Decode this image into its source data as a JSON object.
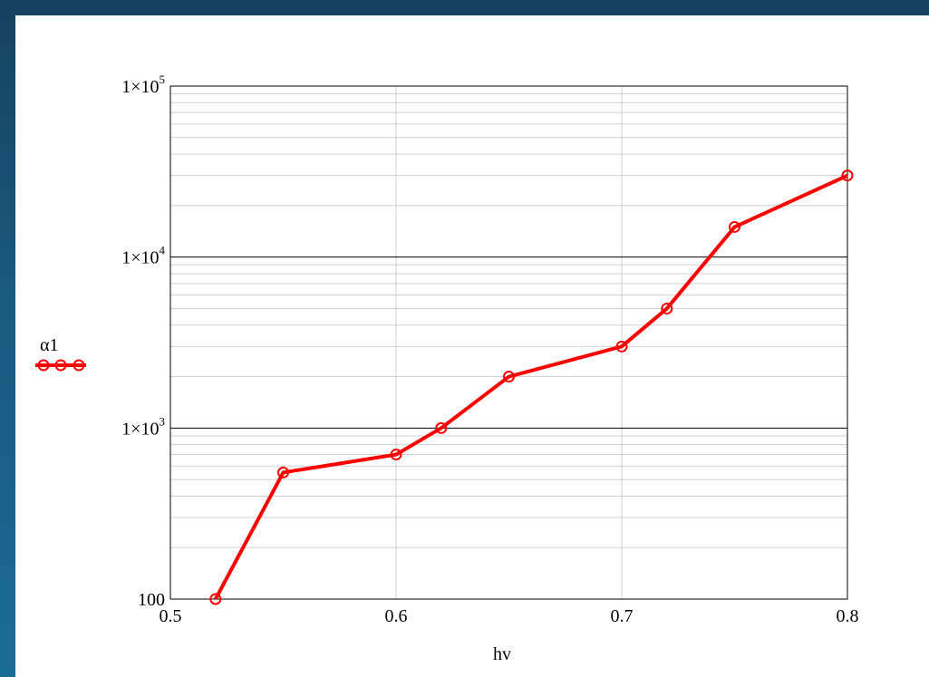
{
  "chart_data": {
    "type": "line",
    "xlabel": "hv",
    "ylabel": "α1",
    "x_scale": "linear",
    "y_scale": "log",
    "xlim": [
      0.5,
      0.8
    ],
    "ylim": [
      100,
      100000
    ],
    "x_ticks": [
      {
        "value": 0.5,
        "label": "0.5"
      },
      {
        "value": 0.6,
        "label": "0.6"
      },
      {
        "value": 0.7,
        "label": "0.7"
      },
      {
        "value": 0.8,
        "label": "0.8"
      }
    ],
    "y_ticks": [
      {
        "value": 100,
        "base": "100",
        "exp": ""
      },
      {
        "value": 1000,
        "base": "1×10",
        "exp": "3"
      },
      {
        "value": 10000,
        "base": "1×10",
        "exp": "4"
      },
      {
        "value": 100000,
        "base": "1×10",
        "exp": "5"
      }
    ],
    "grid": true,
    "series": [
      {
        "name": "α1",
        "color": "#ff0000",
        "marker": "circle",
        "x": [
          0.52,
          0.55,
          0.6,
          0.62,
          0.65,
          0.7,
          0.72,
          0.75,
          0.8
        ],
        "y": [
          100,
          550,
          700,
          1000,
          2000,
          3000,
          5000,
          15000,
          30000
        ]
      }
    ]
  }
}
